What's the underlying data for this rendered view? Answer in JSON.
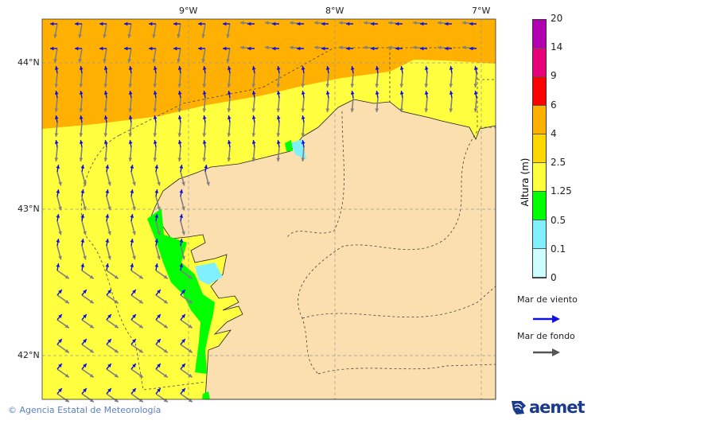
{
  "map": {
    "lon_labels": [
      "9°W",
      "8°W",
      "7°W"
    ],
    "lat_labels": [
      "44°N",
      "43°N",
      "42°N"
    ],
    "colors": {
      "sea_4_6": "#FFB000",
      "sea_2_5_4": "#FFD700",
      "sea_1_25_2_5": "#FFFF40",
      "sea_0_5_1_25": "#00FF00",
      "sea_0_1_0_5": "#80F0FF",
      "land": "#FCDFAE",
      "wind_sea_arrow": "#1010E0",
      "swell_arrow": "#808080"
    }
  },
  "colorbar": {
    "title": "Altura (m)",
    "levels": [
      "20",
      "14",
      "9",
      "6",
      "4",
      "2.5",
      "1.25",
      "0.5",
      "0.1",
      "0"
    ],
    "colors": [
      "#B000B0",
      "#E8007A",
      "#FF0000",
      "#FFB000",
      "#FFD700",
      "#FFFF40",
      "#00FF00",
      "#80F0FF",
      "#CCFFFF"
    ]
  },
  "legend": {
    "wind_sea": "Mar de viento",
    "swell": "Mar de fondo"
  },
  "footer": {
    "credit": "© Agencia Estatal de Meteorología",
    "logo": "aemet"
  }
}
